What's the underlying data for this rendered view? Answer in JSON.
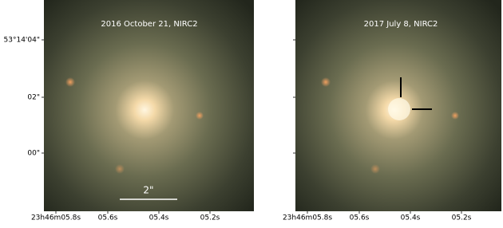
{
  "panels": [
    {
      "title": "2016 October 21, NIRC2",
      "scale_bar": "2\"",
      "x_ticks": [
        "23h46m05.8s",
        "05.6s",
        "05.4s",
        "05.2s"
      ],
      "y_ticks": [
        "53°14'04\"",
        "02\"",
        "00\""
      ]
    },
    {
      "title": "2017 July 8, NIRC2",
      "x_ticks": [
        "23h46m05.8s",
        "05.6s",
        "05.4s",
        "05.2s"
      ]
    }
  ]
}
